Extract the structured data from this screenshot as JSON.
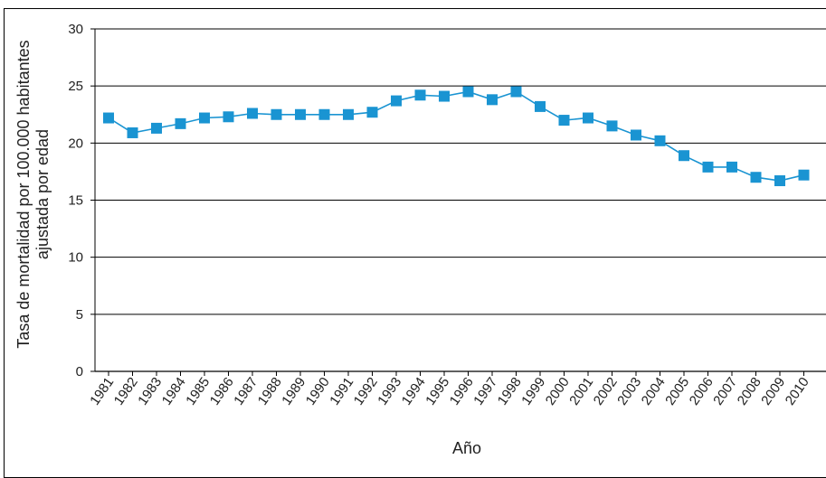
{
  "chart_data": {
    "type": "line",
    "title": "",
    "xlabel": "Año",
    "ylabel_line1": "Tasa de  mortalidad por 100.000 habitantes",
    "ylabel_line2": "ajustada por edad",
    "ylim": [
      0,
      30
    ],
    "yticks": [
      0,
      5,
      10,
      15,
      20,
      25,
      30
    ],
    "grid": "horizontal",
    "legend": "none",
    "categories": [
      "1981",
      "1982",
      "1983",
      "1984",
      "1985",
      "1986",
      "1987",
      "1988",
      "1989",
      "1990",
      "1991",
      "1992",
      "1993",
      "1994",
      "1995",
      "1996",
      "1997",
      "1998",
      "1999",
      "2000",
      "2001",
      "2002",
      "2003",
      "2004",
      "2005",
      "2006",
      "2007",
      "2008",
      "2009",
      "2010"
    ],
    "series": [
      {
        "color": "#1a94d2",
        "marker": "square",
        "values": [
          22.2,
          20.9,
          21.3,
          21.7,
          22.2,
          22.3,
          22.6,
          22.5,
          22.5,
          22.5,
          22.5,
          22.7,
          23.7,
          24.2,
          24.1,
          24.5,
          23.8,
          24.5,
          23.2,
          22.0,
          22.2,
          21.5,
          20.7,
          20.2,
          18.9,
          17.9,
          17.9,
          17.0,
          16.7,
          17.2
        ]
      }
    ]
  }
}
